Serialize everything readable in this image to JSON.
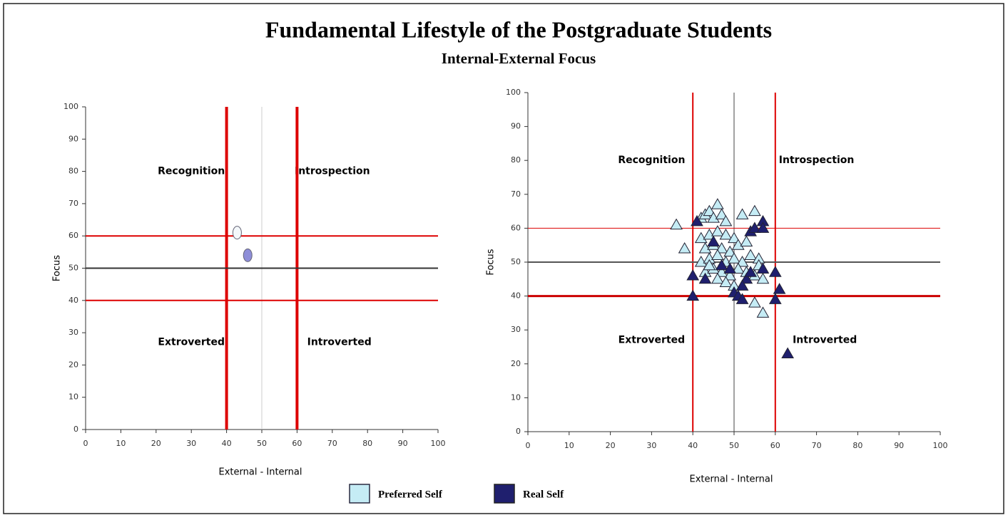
{
  "title": "Fundamental Lifestyle of the Postgraduate Students",
  "subtitle": "Internal-External Focus",
  "chart_data": [
    {
      "type": "scatter",
      "marker": "circle",
      "xlabel": "External - Internal",
      "ylabel": "Focus",
      "xlim": [
        0,
        100
      ],
      "ylim": [
        0,
        100
      ],
      "xticks": [
        0,
        10,
        20,
        30,
        40,
        50,
        60,
        70,
        80,
        90,
        100
      ],
      "yticks": [
        0,
        10,
        20,
        30,
        40,
        50,
        60,
        70,
        80,
        90,
        100
      ],
      "quadrant_labels": {
        "top_left": "Recognition",
        "top_right": "Introspection",
        "bottom_left": "Extroverted",
        "bottom_right": "Introverted"
      },
      "vlines": [
        {
          "value": 40,
          "color": "#dd0000",
          "width": 4
        },
        {
          "value": 50,
          "color": "#cccccc",
          "width": 1
        },
        {
          "value": 60,
          "color": "#dd0000",
          "width": 4
        }
      ],
      "hlines": [
        {
          "value": 40,
          "color": "#dd0000",
          "width": 2
        },
        {
          "value": 50,
          "color": "#333333",
          "width": 2
        },
        {
          "value": 60,
          "color": "#dd0000",
          "width": 2
        }
      ],
      "series": [
        {
          "name": "Preferred Self",
          "color": "#f4f8fb",
          "x": [
            43
          ],
          "y": [
            61
          ]
        },
        {
          "name": "Real Self",
          "color": "#8e8ed8",
          "x": [
            46
          ],
          "y": [
            54
          ]
        }
      ]
    },
    {
      "type": "scatter",
      "marker": "triangle",
      "xlabel": "External - Internal",
      "ylabel": "Focus",
      "xlim": [
        0,
        100
      ],
      "ylim": [
        0,
        100
      ],
      "xticks": [
        0,
        10,
        20,
        30,
        40,
        50,
        60,
        70,
        80,
        90,
        100
      ],
      "yticks": [
        0,
        10,
        20,
        30,
        40,
        50,
        60,
        70,
        80,
        90,
        100
      ],
      "quadrant_labels": {
        "top_left": "Recognition",
        "top_right": "Introspection",
        "bottom_left": "Extroverted",
        "bottom_right": "Introverted"
      },
      "vlines": [
        {
          "value": 40,
          "color": "#dd0000",
          "width": 2
        },
        {
          "value": 50,
          "color": "#444444",
          "width": 1
        },
        {
          "value": 60,
          "color": "#dd0000",
          "width": 2
        }
      ],
      "hlines": [
        {
          "value": 40,
          "color": "#cc0000",
          "width": 3
        },
        {
          "value": 50,
          "color": "#555555",
          "width": 2
        },
        {
          "value": 60,
          "color": "#dd0000",
          "width": 1
        }
      ],
      "series": [
        {
          "name": "Preferred Self",
          "color": "#c5ecf5",
          "x": [
            36,
            38,
            42,
            43,
            44,
            45,
            46,
            47,
            48,
            52,
            55,
            42,
            44,
            46,
            48,
            50,
            43,
            45,
            47,
            49,
            51,
            53,
            42,
            44,
            46,
            48,
            50,
            52,
            54,
            56,
            43,
            45,
            47,
            49,
            51,
            53,
            55,
            57,
            46,
            48,
            50,
            55,
            57,
            44,
            56
          ],
          "y": [
            61,
            54,
            63,
            64,
            65,
            63,
            67,
            64,
            62,
            64,
            65,
            57,
            58,
            59,
            58,
            57,
            54,
            55,
            54,
            53,
            55,
            56,
            50,
            51,
            52,
            50,
            51,
            50,
            52,
            51,
            47,
            48,
            47,
            46,
            48,
            47,
            46,
            45,
            45,
            44,
            43,
            38,
            35,
            49,
            49
          ]
        },
        {
          "name": "Real Self",
          "color": "#1f1f6e",
          "x": [
            40,
            40,
            41,
            43,
            47,
            50,
            51,
            52,
            53,
            54,
            55,
            57,
            57,
            52,
            54,
            57,
            60,
            61,
            60,
            63,
            45,
            49
          ],
          "y": [
            46,
            40,
            62,
            45,
            49,
            41,
            40,
            39,
            45,
            59,
            60,
            62,
            60,
            43,
            47,
            48,
            47,
            42,
            39,
            23,
            56,
            48
          ]
        }
      ]
    }
  ]
}
